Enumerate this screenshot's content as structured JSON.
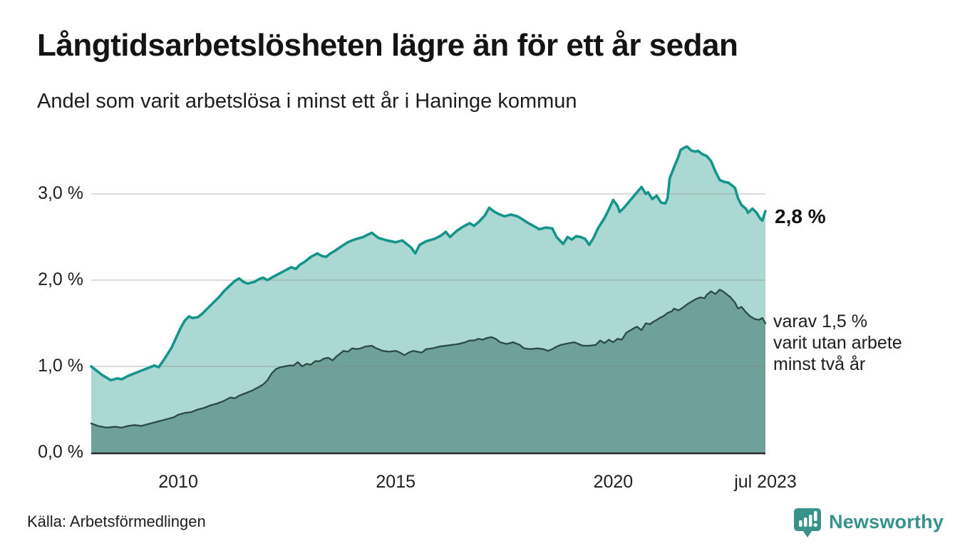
{
  "header": {
    "title": "Långtidsarbetslösheten lägre än för ett år sedan",
    "subtitle": "Andel som varit arbetslösa i minst ett år i Haninge kommun"
  },
  "chart": {
    "y_ticks": [
      {
        "label": "3,0 %",
        "value": 3.0
      },
      {
        "label": "2,0 %",
        "value": 2.0
      },
      {
        "label": "1,0 %",
        "value": 1.0
      },
      {
        "label": "0,0 %",
        "value": 0.0
      }
    ],
    "x_ticks": [
      {
        "label": "2010",
        "year": 2010
      },
      {
        "label": "2015",
        "year": 2015
      },
      {
        "label": "2020",
        "year": 2020
      },
      {
        "label": "jul 2023",
        "year": 2023.5
      }
    ],
    "annotations": {
      "end_value_label": "2,8 %",
      "secondary_lines": [
        "varav 1,5 %",
        "varit utan arbete",
        "minst två år"
      ]
    },
    "colors": {
      "upper_line": "#15948b",
      "upper_fill": "#abd8d2",
      "lower_line": "#2c4a45",
      "lower_fill": "#6fa19b",
      "gridline": "rgba(125,125,125,0.28)",
      "axis": "#2b2b2b",
      "brand_teal": "#37928b"
    }
  },
  "chart_data": {
    "type": "area",
    "title": "Långtidsarbetslösheten lägre än för ett år sedan",
    "subtitle": "Andel som varit arbetslösa i minst ett år i Haninge kommun",
    "xlabel": "",
    "ylabel": "%",
    "x_range": [
      2008.0,
      2023.5
    ],
    "ylim": [
      0,
      3.6
    ],
    "grid": "horizontal",
    "unit": "%",
    "series": [
      {
        "name": "minst ett år",
        "end_value": 2.8,
        "points": [
          [
            2008.0,
            1.0
          ],
          [
            2008.1,
            0.96
          ],
          [
            2008.25,
            0.9
          ],
          [
            2008.45,
            0.84
          ],
          [
            2008.6,
            0.86
          ],
          [
            2008.7,
            0.85
          ],
          [
            2008.85,
            0.89
          ],
          [
            2009.0,
            0.92
          ],
          [
            2009.15,
            0.95
          ],
          [
            2009.3,
            0.98
          ],
          [
            2009.45,
            1.01
          ],
          [
            2009.55,
            0.99
          ],
          [
            2009.65,
            1.06
          ],
          [
            2009.75,
            1.14
          ],
          [
            2009.85,
            1.22
          ],
          [
            2009.95,
            1.33
          ],
          [
            2010.05,
            1.44
          ],
          [
            2010.15,
            1.53
          ],
          [
            2010.25,
            1.58
          ],
          [
            2010.33,
            1.56
          ],
          [
            2010.45,
            1.57
          ],
          [
            2010.55,
            1.61
          ],
          [
            2010.65,
            1.66
          ],
          [
            2010.75,
            1.71
          ],
          [
            2010.85,
            1.76
          ],
          [
            2010.95,
            1.81
          ],
          [
            2011.05,
            1.87
          ],
          [
            2011.15,
            1.92
          ],
          [
            2011.3,
            1.99
          ],
          [
            2011.4,
            2.02
          ],
          [
            2011.5,
            1.98
          ],
          [
            2011.6,
            1.96
          ],
          [
            2011.75,
            1.98
          ],
          [
            2011.85,
            2.01
          ],
          [
            2011.95,
            2.03
          ],
          [
            2012.05,
            2.0
          ],
          [
            2012.15,
            2.03
          ],
          [
            2012.3,
            2.07
          ],
          [
            2012.45,
            2.11
          ],
          [
            2012.6,
            2.15
          ],
          [
            2012.7,
            2.13
          ],
          [
            2012.8,
            2.18
          ],
          [
            2012.9,
            2.21
          ],
          [
            2013.05,
            2.27
          ],
          [
            2013.2,
            2.31
          ],
          [
            2013.3,
            2.28
          ],
          [
            2013.4,
            2.27
          ],
          [
            2013.5,
            2.31
          ],
          [
            2013.6,
            2.34
          ],
          [
            2013.75,
            2.39
          ],
          [
            2013.9,
            2.44
          ],
          [
            2014.05,
            2.47
          ],
          [
            2014.25,
            2.5
          ],
          [
            2014.45,
            2.55
          ],
          [
            2014.6,
            2.49
          ],
          [
            2014.8,
            2.46
          ],
          [
            2015.0,
            2.44
          ],
          [
            2015.15,
            2.46
          ],
          [
            2015.25,
            2.42
          ],
          [
            2015.35,
            2.38
          ],
          [
            2015.45,
            2.31
          ],
          [
            2015.55,
            2.41
          ],
          [
            2015.7,
            2.45
          ],
          [
            2015.9,
            2.48
          ],
          [
            2016.05,
            2.52
          ],
          [
            2016.15,
            2.56
          ],
          [
            2016.25,
            2.5
          ],
          [
            2016.4,
            2.57
          ],
          [
            2016.55,
            2.62
          ],
          [
            2016.7,
            2.66
          ],
          [
            2016.8,
            2.63
          ],
          [
            2016.9,
            2.67
          ],
          [
            2017.05,
            2.75
          ],
          [
            2017.15,
            2.84
          ],
          [
            2017.25,
            2.8
          ],
          [
            2017.35,
            2.77
          ],
          [
            2017.5,
            2.74
          ],
          [
            2017.65,
            2.76
          ],
          [
            2017.8,
            2.74
          ],
          [
            2017.9,
            2.71
          ],
          [
            2018.05,
            2.66
          ],
          [
            2018.2,
            2.62
          ],
          [
            2018.3,
            2.59
          ],
          [
            2018.45,
            2.61
          ],
          [
            2018.6,
            2.6
          ],
          [
            2018.7,
            2.5
          ],
          [
            2018.85,
            2.42
          ],
          [
            2018.95,
            2.5
          ],
          [
            2019.05,
            2.47
          ],
          [
            2019.15,
            2.51
          ],
          [
            2019.25,
            2.5
          ],
          [
            2019.35,
            2.48
          ],
          [
            2019.45,
            2.41
          ],
          [
            2019.55,
            2.49
          ],
          [
            2019.65,
            2.6
          ],
          [
            2019.8,
            2.72
          ],
          [
            2019.9,
            2.82
          ],
          [
            2020.0,
            2.93
          ],
          [
            2020.1,
            2.86
          ],
          [
            2020.15,
            2.79
          ],
          [
            2020.25,
            2.84
          ],
          [
            2020.35,
            2.9
          ],
          [
            2020.5,
            2.99
          ],
          [
            2020.6,
            3.05
          ],
          [
            2020.65,
            3.08
          ],
          [
            2020.75,
            3.0
          ],
          [
            2020.8,
            3.02
          ],
          [
            2020.9,
            2.94
          ],
          [
            2021.0,
            2.98
          ],
          [
            2021.1,
            2.9
          ],
          [
            2021.2,
            2.89
          ],
          [
            2021.25,
            2.95
          ],
          [
            2021.3,
            3.18
          ],
          [
            2021.4,
            3.31
          ],
          [
            2021.5,
            3.43
          ],
          [
            2021.55,
            3.51
          ],
          [
            2021.65,
            3.54
          ],
          [
            2021.7,
            3.55
          ],
          [
            2021.8,
            3.5
          ],
          [
            2021.9,
            3.49
          ],
          [
            2021.95,
            3.5
          ],
          [
            2022.05,
            3.46
          ],
          [
            2022.15,
            3.44
          ],
          [
            2022.25,
            3.38
          ],
          [
            2022.35,
            3.26
          ],
          [
            2022.45,
            3.16
          ],
          [
            2022.55,
            3.14
          ],
          [
            2022.65,
            3.13
          ],
          [
            2022.7,
            3.11
          ],
          [
            2022.8,
            3.07
          ],
          [
            2022.87,
            2.95
          ],
          [
            2022.95,
            2.87
          ],
          [
            2023.05,
            2.83
          ],
          [
            2023.1,
            2.78
          ],
          [
            2023.2,
            2.83
          ],
          [
            2023.3,
            2.78
          ],
          [
            2023.37,
            2.72
          ],
          [
            2023.43,
            2.69
          ],
          [
            2023.5,
            2.8
          ]
        ]
      },
      {
        "name": "minst två år",
        "end_value": 1.5,
        "points": [
          [
            2008.0,
            0.34
          ],
          [
            2008.15,
            0.31
          ],
          [
            2008.35,
            0.29
          ],
          [
            2008.55,
            0.3
          ],
          [
            2008.7,
            0.29
          ],
          [
            2008.85,
            0.31
          ],
          [
            2009.0,
            0.32
          ],
          [
            2009.15,
            0.31
          ],
          [
            2009.3,
            0.33
          ],
          [
            2009.45,
            0.35
          ],
          [
            2009.6,
            0.37
          ],
          [
            2009.75,
            0.39
          ],
          [
            2009.9,
            0.41
          ],
          [
            2010.0,
            0.44
          ],
          [
            2010.15,
            0.46
          ],
          [
            2010.3,
            0.47
          ],
          [
            2010.45,
            0.5
          ],
          [
            2010.6,
            0.52
          ],
          [
            2010.75,
            0.55
          ],
          [
            2010.9,
            0.57
          ],
          [
            2011.05,
            0.6
          ],
          [
            2011.2,
            0.64
          ],
          [
            2011.3,
            0.63
          ],
          [
            2011.4,
            0.66
          ],
          [
            2011.55,
            0.69
          ],
          [
            2011.7,
            0.72
          ],
          [
            2011.85,
            0.76
          ],
          [
            2011.95,
            0.79
          ],
          [
            2012.05,
            0.84
          ],
          [
            2012.15,
            0.92
          ],
          [
            2012.25,
            0.97
          ],
          [
            2012.35,
            0.99
          ],
          [
            2012.45,
            1.0
          ],
          [
            2012.55,
            1.01
          ],
          [
            2012.65,
            1.01
          ],
          [
            2012.75,
            1.05
          ],
          [
            2012.85,
            1.0
          ],
          [
            2012.95,
            1.03
          ],
          [
            2013.05,
            1.02
          ],
          [
            2013.15,
            1.06
          ],
          [
            2013.25,
            1.06
          ],
          [
            2013.35,
            1.09
          ],
          [
            2013.45,
            1.1
          ],
          [
            2013.55,
            1.07
          ],
          [
            2013.65,
            1.12
          ],
          [
            2013.8,
            1.18
          ],
          [
            2013.9,
            1.17
          ],
          [
            2014.0,
            1.21
          ],
          [
            2014.1,
            1.2
          ],
          [
            2014.2,
            1.21
          ],
          [
            2014.3,
            1.23
          ],
          [
            2014.45,
            1.24
          ],
          [
            2014.55,
            1.21
          ],
          [
            2014.7,
            1.18
          ],
          [
            2014.85,
            1.17
          ],
          [
            2015.0,
            1.18
          ],
          [
            2015.1,
            1.16
          ],
          [
            2015.2,
            1.13
          ],
          [
            2015.3,
            1.16
          ],
          [
            2015.4,
            1.18
          ],
          [
            2015.5,
            1.17
          ],
          [
            2015.6,
            1.16
          ],
          [
            2015.7,
            1.2
          ],
          [
            2015.85,
            1.21
          ],
          [
            2016.0,
            1.23
          ],
          [
            2016.15,
            1.24
          ],
          [
            2016.3,
            1.25
          ],
          [
            2016.45,
            1.26
          ],
          [
            2016.6,
            1.28
          ],
          [
            2016.7,
            1.3
          ],
          [
            2016.8,
            1.3
          ],
          [
            2016.9,
            1.32
          ],
          [
            2017.0,
            1.31
          ],
          [
            2017.1,
            1.33
          ],
          [
            2017.2,
            1.34
          ],
          [
            2017.3,
            1.32
          ],
          [
            2017.4,
            1.28
          ],
          [
            2017.55,
            1.26
          ],
          [
            2017.7,
            1.28
          ],
          [
            2017.85,
            1.25
          ],
          [
            2017.95,
            1.21
          ],
          [
            2018.1,
            1.2
          ],
          [
            2018.25,
            1.21
          ],
          [
            2018.4,
            1.2
          ],
          [
            2018.5,
            1.18
          ],
          [
            2018.6,
            1.2
          ],
          [
            2018.7,
            1.23
          ],
          [
            2018.8,
            1.25
          ],
          [
            2018.9,
            1.26
          ],
          [
            2019.0,
            1.27
          ],
          [
            2019.1,
            1.28
          ],
          [
            2019.2,
            1.26
          ],
          [
            2019.3,
            1.24
          ],
          [
            2019.45,
            1.24
          ],
          [
            2019.6,
            1.25
          ],
          [
            2019.7,
            1.3
          ],
          [
            2019.8,
            1.27
          ],
          [
            2019.9,
            1.31
          ],
          [
            2020.0,
            1.28
          ],
          [
            2020.1,
            1.32
          ],
          [
            2020.2,
            1.31
          ],
          [
            2020.3,
            1.39
          ],
          [
            2020.4,
            1.42
          ],
          [
            2020.5,
            1.45
          ],
          [
            2020.55,
            1.46
          ],
          [
            2020.65,
            1.42
          ],
          [
            2020.75,
            1.5
          ],
          [
            2020.85,
            1.49
          ],
          [
            2020.9,
            1.51
          ],
          [
            2021.0,
            1.54
          ],
          [
            2021.1,
            1.57
          ],
          [
            2021.15,
            1.58
          ],
          [
            2021.25,
            1.62
          ],
          [
            2021.35,
            1.64
          ],
          [
            2021.4,
            1.67
          ],
          [
            2021.5,
            1.65
          ],
          [
            2021.6,
            1.68
          ],
          [
            2021.7,
            1.72
          ],
          [
            2021.8,
            1.75
          ],
          [
            2021.9,
            1.78
          ],
          [
            2022.0,
            1.8
          ],
          [
            2022.1,
            1.79
          ],
          [
            2022.15,
            1.83
          ],
          [
            2022.25,
            1.87
          ],
          [
            2022.35,
            1.84
          ],
          [
            2022.45,
            1.89
          ],
          [
            2022.55,
            1.86
          ],
          [
            2022.6,
            1.84
          ],
          [
            2022.7,
            1.8
          ],
          [
            2022.8,
            1.74
          ],
          [
            2022.87,
            1.67
          ],
          [
            2022.95,
            1.69
          ],
          [
            2023.05,
            1.63
          ],
          [
            2023.15,
            1.58
          ],
          [
            2023.25,
            1.55
          ],
          [
            2023.35,
            1.54
          ],
          [
            2023.43,
            1.56
          ],
          [
            2023.5,
            1.5
          ]
        ]
      }
    ]
  },
  "footer": {
    "source": "Källa: Arbetsförmedlingen",
    "brand": "Newsworthy"
  }
}
